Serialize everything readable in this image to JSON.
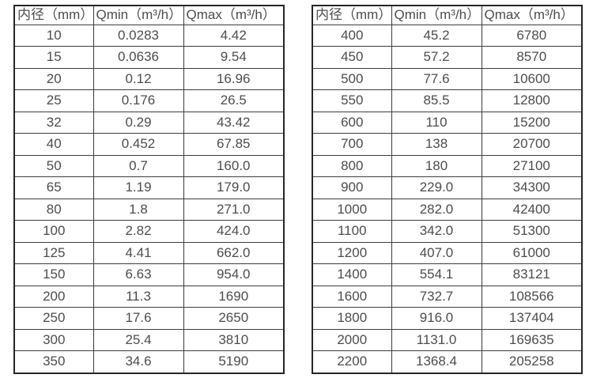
{
  "colors": {
    "background": "#ffffff",
    "text": "#4d4d4d",
    "border_outer": "#262626",
    "border_inner": "#3d3d3d"
  },
  "tables": [
    {
      "name": "flow-rate-table-small-diameters",
      "headers": [
        "内径（mm）",
        "Qmin（m³/h）",
        "Qmax（m³/h）"
      ],
      "rows": [
        [
          "10",
          "0.0283",
          "4.42"
        ],
        [
          "15",
          "0.0636",
          "9.54"
        ],
        [
          "20",
          "0.12",
          "16.96"
        ],
        [
          "25",
          "0.176",
          "26.5"
        ],
        [
          "32",
          "0.29",
          "43.42"
        ],
        [
          "40",
          "0.452",
          "67.85"
        ],
        [
          "50",
          "0.7",
          "160.0"
        ],
        [
          "65",
          "1.19",
          "179.0"
        ],
        [
          "80",
          "1.8",
          "271.0"
        ],
        [
          "100",
          "2.82",
          "424.0"
        ],
        [
          "125",
          "4.41",
          "662.0"
        ],
        [
          "150",
          "6.63",
          "954.0"
        ],
        [
          "200",
          "11.3",
          "1690"
        ],
        [
          "250",
          "17.6",
          "2650"
        ],
        [
          "300",
          "25.4",
          "3810"
        ],
        [
          "350",
          "34.6",
          "5190"
        ]
      ]
    },
    {
      "name": "flow-rate-table-large-diameters",
      "headers": [
        "内径（mm）",
        "Qmin（m³/h）",
        "Qmax（m³/h）"
      ],
      "rows": [
        [
          "400",
          "45.2",
          "6780"
        ],
        [
          "450",
          "57.2",
          "8570"
        ],
        [
          "500",
          "77.6",
          "10600"
        ],
        [
          "550",
          "85.5",
          "12800"
        ],
        [
          "600",
          "110",
          "15200"
        ],
        [
          "700",
          "138",
          "20700"
        ],
        [
          "800",
          "180",
          "27100"
        ],
        [
          "900",
          "229.0",
          "34300"
        ],
        [
          "1000",
          "282.0",
          "42400"
        ],
        [
          "1100",
          "342.0",
          "51300"
        ],
        [
          "1200",
          "407.0",
          "61000"
        ],
        [
          "1400",
          "554.1",
          "83121"
        ],
        [
          "1600",
          "732.7",
          "108566"
        ],
        [
          "1800",
          "916.0",
          "137404"
        ],
        [
          "2000",
          "1131.0",
          "169635"
        ],
        [
          "2200",
          "1368.4",
          "205258"
        ]
      ]
    }
  ]
}
